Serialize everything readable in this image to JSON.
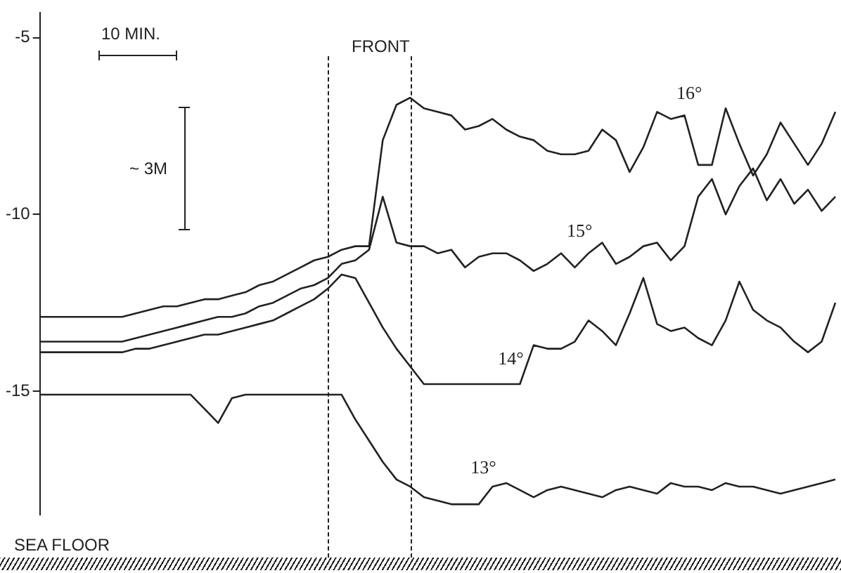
{
  "chart_data": {
    "type": "line",
    "categories": [
      null,
      null,
      null,
      null,
      null,
      null,
      null,
      null,
      null,
      null,
      null,
      null,
      null,
      null,
      null,
      null,
      null,
      null,
      null,
      null,
      null,
      null,
      null,
      null,
      null,
      null,
      null,
      null,
      null,
      null,
      null,
      null,
      null,
      null,
      null,
      null,
      null,
      null,
      null,
      null,
      null,
      null,
      null,
      null,
      null,
      null,
      null,
      null,
      null,
      null,
      null,
      null,
      null,
      null,
      null,
      null,
      null,
      null,
      null
    ],
    "series": [
      {
        "name": "16°",
        "color": "#222222",
        "values": [
          -12.9,
          -12.9,
          -12.9,
          -12.9,
          -12.9,
          -12.9,
          -12.9,
          -12.8,
          -12.7,
          -12.6,
          -12.6,
          -12.5,
          -12.4,
          -12.4,
          -12.3,
          -12.2,
          -12.0,
          -11.9,
          -11.7,
          -11.5,
          -11.3,
          -11.2,
          -11.0,
          -10.9,
          -10.9,
          -7.9,
          -6.9,
          -6.7,
          -7.0,
          -7.1,
          -7.2,
          -7.6,
          -7.5,
          -7.3,
          -7.6,
          -7.8,
          -7.9,
          -8.2,
          -8.3,
          -8.3,
          -8.2,
          -7.6,
          -7.9,
          -8.8,
          -8.1,
          -7.1,
          -7.3,
          -7.2,
          -8.6,
          -8.6,
          -7.0,
          -8.0,
          -8.9,
          -8.3,
          -7.4,
          -8.0,
          -8.6,
          -8.0,
          -7.1
        ]
      },
      {
        "name": "15°",
        "color": "#222222",
        "values": [
          -13.6,
          -13.6,
          -13.6,
          -13.6,
          -13.6,
          -13.6,
          -13.6,
          -13.5,
          -13.4,
          -13.3,
          -13.2,
          -13.1,
          -13.0,
          -12.9,
          -12.9,
          -12.8,
          -12.6,
          -12.5,
          -12.3,
          -12.1,
          -12.0,
          -11.8,
          -11.4,
          -11.3,
          -11.0,
          -9.5,
          -10.8,
          -10.9,
          -10.9,
          -11.1,
          -11.0,
          -11.5,
          -11.2,
          -11.1,
          -11.1,
          -11.3,
          -11.6,
          -11.4,
          -11.1,
          -11.5,
          -11.1,
          -10.8,
          -11.4,
          -11.2,
          -10.9,
          -10.8,
          -11.3,
          -10.9,
          -9.5,
          -9.0,
          -10.0,
          -9.2,
          -8.7,
          -9.6,
          -9.0,
          -9.7,
          -9.3,
          -9.9,
          -9.5
        ]
      },
      {
        "name": "14°",
        "color": "#222222",
        "values": [
          -13.9,
          -13.9,
          -13.9,
          -13.9,
          -13.9,
          -13.9,
          -13.9,
          -13.8,
          -13.8,
          -13.7,
          -13.6,
          -13.5,
          -13.4,
          -13.4,
          -13.3,
          -13.2,
          -13.1,
          -13.0,
          -12.8,
          -12.6,
          -12.4,
          -12.1,
          -11.7,
          -11.8,
          -12.5,
          -13.2,
          -13.8,
          -14.3,
          -14.8,
          -14.8,
          -14.8,
          -14.8,
          -14.8,
          -14.8,
          -14.8,
          -14.8,
          -13.7,
          -13.8,
          -13.8,
          -13.6,
          -13.0,
          -13.3,
          -13.7,
          -12.8,
          -11.8,
          -13.1,
          -13.3,
          -13.2,
          -13.5,
          -13.7,
          -13.0,
          -11.9,
          -12.7,
          -13.0,
          -13.2,
          -13.6,
          -13.9,
          -13.6,
          -12.5
        ]
      },
      {
        "name": "13°",
        "color": "#222222",
        "values": [
          -15.1,
          -15.1,
          -15.1,
          -15.1,
          -15.1,
          -15.1,
          -15.1,
          -15.1,
          -15.1,
          -15.1,
          -15.1,
          -15.1,
          -15.5,
          -15.9,
          -15.2,
          -15.1,
          -15.1,
          -15.1,
          -15.1,
          -15.1,
          -15.1,
          -15.1,
          -15.1,
          -15.8,
          -16.4,
          -17.0,
          -17.5,
          -17.7,
          -18.0,
          -18.1,
          -18.2,
          -18.2,
          -18.2,
          -17.7,
          -17.6,
          -17.8,
          -18.0,
          -17.8,
          -17.7,
          -17.8,
          -17.9,
          -18.0,
          -17.8,
          -17.7,
          -17.8,
          -17.9,
          -17.6,
          -17.7,
          -17.7,
          -17.8,
          -17.6,
          -17.7,
          -17.7,
          -17.8,
          -17.9,
          -17.8,
          -17.7,
          -17.6,
          -17.5
        ]
      }
    ],
    "ylim": [
      -18.5,
      -4.3
    ],
    "yticks": [
      -5,
      -10,
      -15
    ],
    "annotations": [
      "10 MIN.",
      "~ 3M",
      "FRONT",
      "SEA FLOOR"
    ],
    "grid": false,
    "legend": false,
    "marker": "none",
    "line_style": "solid"
  }
}
